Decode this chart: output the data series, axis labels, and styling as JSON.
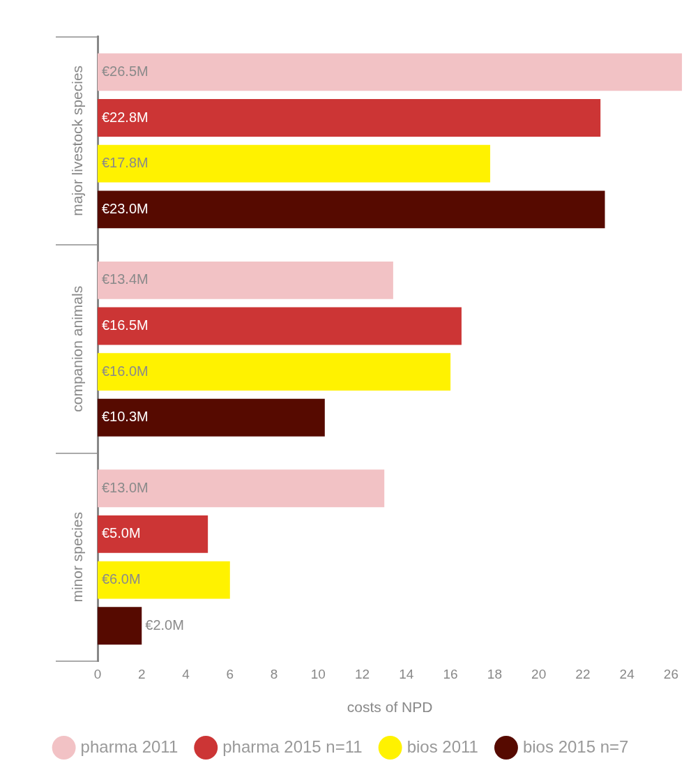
{
  "chart_data": {
    "type": "bar",
    "orientation": "horizontal",
    "categories": [
      "major livestock species",
      "companion animals",
      "minor species"
    ],
    "series": [
      {
        "name": "pharma 2011",
        "color": "#f2c2c5",
        "values": [
          26.5,
          13.4,
          13.0
        ],
        "value_labels": [
          "€26.5M",
          "€13.4M",
          "€13.0M"
        ]
      },
      {
        "name": "pharma 2015 n=11",
        "color": "#cc3535",
        "values": [
          22.8,
          16.5,
          5.0
        ],
        "value_labels": [
          "€22.8M",
          "€16.5M",
          "€5.0M"
        ]
      },
      {
        "name": "bios 2011",
        "color": "#fff200",
        "values": [
          17.8,
          16.0,
          6.0
        ],
        "value_labels": [
          "€17.8M",
          "€16.0M",
          "€6.0M"
        ]
      },
      {
        "name": "bios 2015 n=7",
        "color": "#560a00",
        "values": [
          23.0,
          10.3,
          2.0
        ],
        "value_labels": [
          "€23.0M",
          "€10.3M",
          "€2.0M"
        ]
      }
    ],
    "xlabel": "costs of NPD",
    "xlim": [
      0,
      26.5
    ],
    "xticks": [
      0,
      2,
      4,
      6,
      8,
      10,
      12,
      14,
      16,
      18,
      20,
      22,
      24,
      26
    ],
    "grid": false,
    "legend": "bottom"
  }
}
